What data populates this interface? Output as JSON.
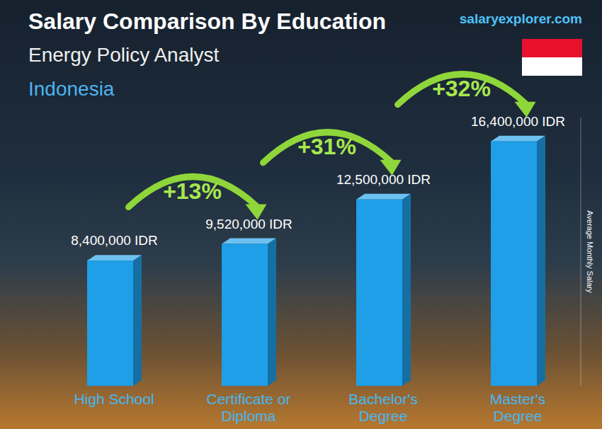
{
  "chart_data": {
    "type": "bar",
    "title": "Salary Comparison By Education",
    "subtitle": "Energy Policy Analyst",
    "country": "Indonesia",
    "source": "salaryexplorer.com",
    "ylabel": "Average Monthly Salary",
    "categories": [
      "High School",
      "Certificate or Diploma",
      "Bachelor's Degree",
      "Master's Degree"
    ],
    "values": [
      8400000,
      9520000,
      12500000,
      16400000
    ],
    "value_labels": [
      "8,400,000 IDR",
      "9,520,000 IDR",
      "12,500,000 IDR",
      "16,400,000 IDR"
    ],
    "increases": [
      13,
      31,
      32
    ],
    "increase_labels": [
      "+13%",
      "+31%",
      "+32%"
    ],
    "color": "#1e9fe8",
    "ylim": [
      0,
      18000000
    ],
    "grid": false,
    "data_labels": true,
    "tick_labels": false
  }
}
